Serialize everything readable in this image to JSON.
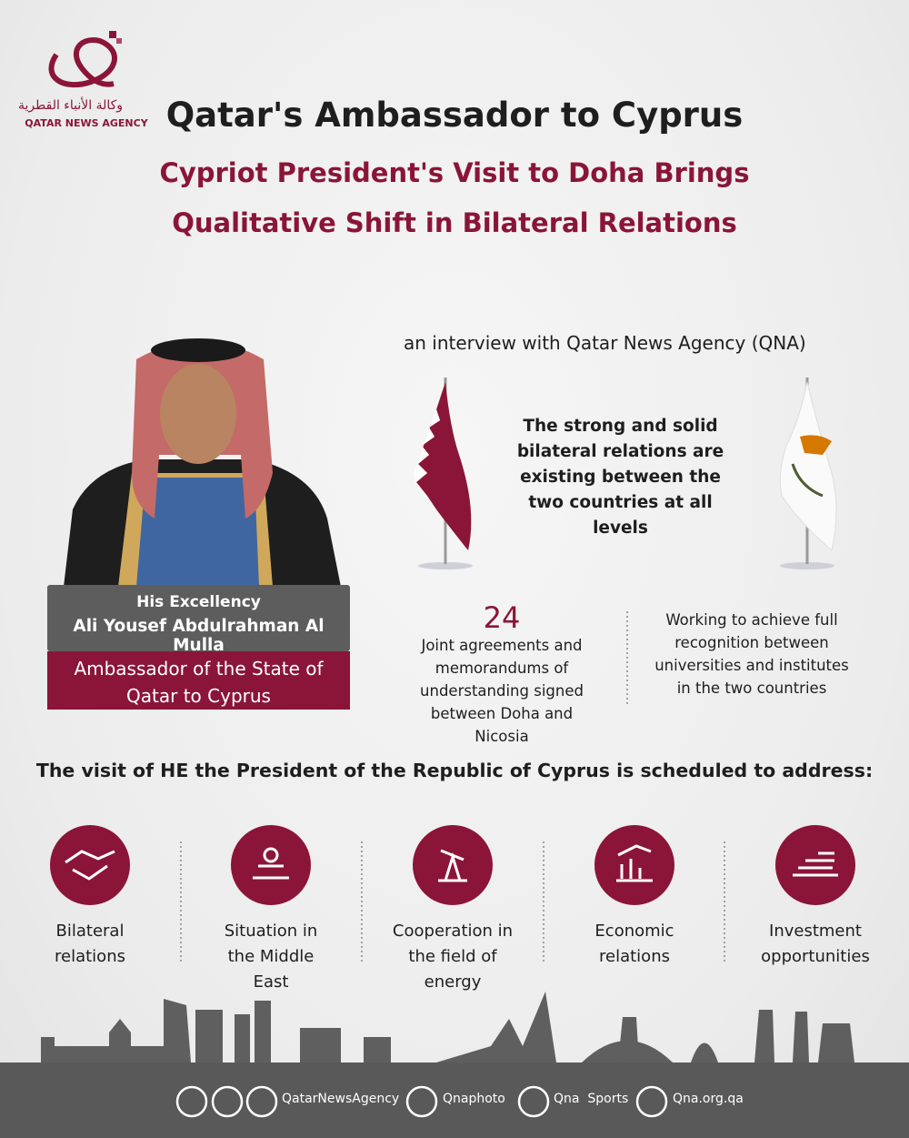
{
  "logo": {
    "arabic": "وكالة الأنباء القطرية",
    "english": "QATAR NEWS AGENCY"
  },
  "header": {
    "title": "Qatar's Ambassador to Cyprus",
    "subtitle_lines": [
      "Cypriot President's Visit to Doha Brings",
      "Qualitative Shift in Bilateral Relations"
    ]
  },
  "interview_note": "an interview with Qatar News Agency (QNA)",
  "quote": "The strong and solid bilateral relations are existing between the two countries at all levels",
  "person": {
    "honorific": "His Excellency",
    "name": "Ali Yousef Abdulrahman Al Mulla",
    "position": "Ambassador of the State of Qatar to Cyprus"
  },
  "facts": [
    {
      "number": 24,
      "text": "Joint agreements and memorandums of understanding signed between Doha and Nicosia"
    },
    {
      "text": "Working to achieve full recognition between universities and institutes in the two countries"
    }
  ],
  "agenda": {
    "heading": "The visit of HE the President of the Republic of Cyprus is scheduled to address:",
    "items": [
      "Bilateral relations",
      "Situation in the Middle East",
      "Cooperation in the field of energy",
      "Economic relations",
      "Investment opportunities"
    ]
  },
  "footer": {
    "social": [
      "QatarNewsAgency",
      "Qnaphoto",
      "Qna  Sports",
      "Qna.org.qa"
    ]
  }
}
